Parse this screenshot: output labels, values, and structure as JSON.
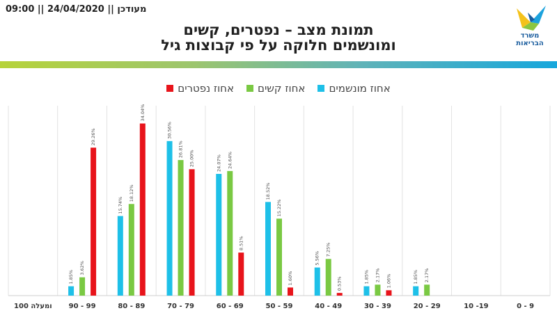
{
  "header": {
    "updated_text": "מעודכן || 24/04/2020 || 09:00",
    "title_line1": "תמונת מצב – נפטרים, קשים",
    "title_line2": "ומונשמים חלוקה על פי קבוצות גיל"
  },
  "logo": {
    "line1": "משרד",
    "line2": "הבריאות"
  },
  "colors": {
    "ventilated": "#1ec0e8",
    "severe": "#7ac943",
    "deceased": "#e8141b",
    "gradient_start": "#b6d33a",
    "gradient_end": "#17a7dc"
  },
  "legend": {
    "deceased_label": "אחוז נפטרים",
    "severe_label": "אחוז קשים",
    "ventilated_label": "אחוז מונשמים"
  },
  "chart_data": {
    "type": "bar",
    "categories": [
      "100 ומעלה",
      "90 - 99",
      "80 - 89",
      "70 - 79",
      "60 - 69",
      "50 - 59",
      "40 - 49",
      "30 - 39",
      "20 - 29",
      "10 -19",
      "0 - 9"
    ],
    "series": [
      {
        "name": "אחוז מונשמים",
        "color": "#1ec0e8",
        "values": [
          null,
          1.85,
          15.74,
          30.56,
          24.07,
          18.52,
          5.56,
          1.85,
          1.85,
          null,
          null
        ]
      },
      {
        "name": "אחוז קשים",
        "color": "#7ac943",
        "values": [
          null,
          3.62,
          18.12,
          26.81,
          24.64,
          15.22,
          7.25,
          2.17,
          2.17,
          null,
          null
        ]
      },
      {
        "name": "אחוז נפטרים",
        "color": "#e8141b",
        "values": [
          null,
          29.26,
          34.04,
          25.0,
          8.51,
          1.6,
          0.53,
          1.06,
          null,
          null,
          null
        ]
      }
    ],
    "value_labels": {
      "ventilated": [
        "",
        "1.85%",
        "15.74%",
        "30.56%",
        "24.07%",
        "18.52%",
        "5.56%",
        "1.85%",
        "1.85%",
        "",
        ""
      ],
      "severe": [
        "",
        "3.62%",
        "18.12%",
        "26.81%",
        "24.64%",
        "15.22%",
        "7.25%",
        "2.17%",
        "2.17%",
        "",
        ""
      ],
      "deceased": [
        "",
        "29.26%",
        "34.04%",
        "25.00%",
        "8.51%",
        "1.60%",
        "0.53%",
        "1.06%",
        "",
        "",
        ""
      ]
    },
    "ylim": [
      0,
      37
    ],
    "grid": "vertical separators",
    "legend_position": "top-center"
  }
}
